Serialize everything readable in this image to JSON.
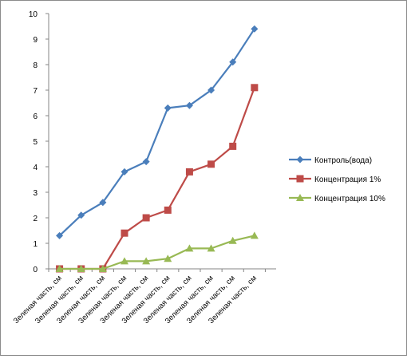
{
  "chart_data": {
    "type": "line",
    "categories": [
      "Зеленая часть, см",
      "Зеленая часть, см",
      "Зеленая часть, см",
      "Зеленая часть, см",
      "Зеленая часть, см",
      "Зеленая часть, см",
      "Зеленая часть, см",
      "Зеленая часть, см",
      "Зеленая часть, см",
      "Зеленая часть, см"
    ],
    "series": [
      {
        "name": "Контроль(вода)",
        "color": "#4a7ebb",
        "marker": "diamond",
        "values": [
          1.3,
          2.1,
          2.6,
          3.8,
          4.2,
          6.3,
          6.4,
          7.0,
          8.1,
          9.4
        ]
      },
      {
        "name": "Концентрация 1%",
        "color": "#be4b48",
        "marker": "square",
        "values": [
          0,
          0,
          0,
          1.4,
          2.0,
          2.3,
          3.8,
          4.1,
          4.8,
          7.1
        ]
      },
      {
        "name": "Концентрация 10%",
        "color": "#98b954",
        "marker": "triangle",
        "values": [
          0,
          0,
          0,
          0.3,
          0.3,
          0.4,
          0.8,
          0.8,
          1.1,
          1.3
        ]
      }
    ],
    "ylim": [
      0,
      10
    ],
    "yticks": [
      "0",
      "1",
      "2",
      "3",
      "4",
      "5",
      "6",
      "7",
      "8",
      "9",
      "10"
    ],
    "grid": false,
    "legend_position": "right"
  }
}
